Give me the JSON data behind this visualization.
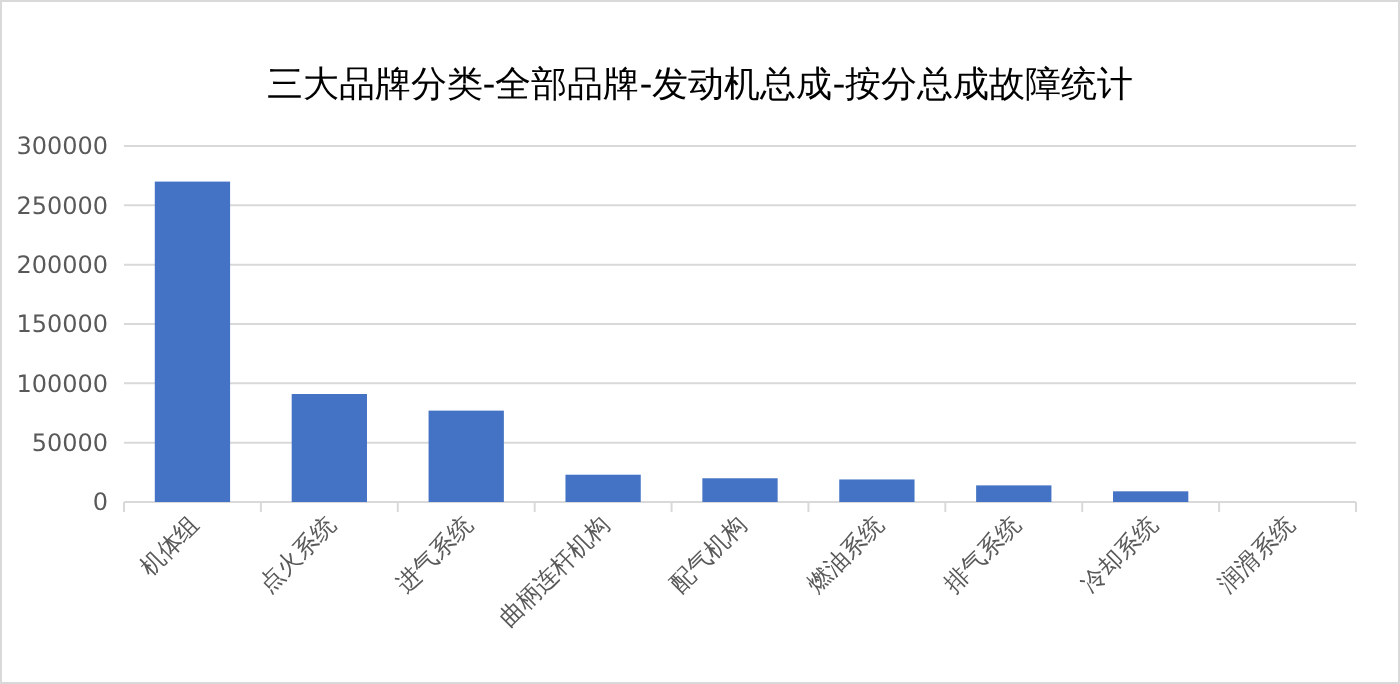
{
  "chart_data": {
    "type": "bar",
    "title": "三大品牌分类-全部品牌-发动机总成-按分总成故障统计",
    "categories": [
      "机体组",
      "点火系统",
      "进气系统",
      "曲柄连杆机构",
      "配气机构",
      "燃油系统",
      "排气系统",
      "冷却系统",
      "润滑系统"
    ],
    "values": [
      270000,
      91000,
      77000,
      23000,
      20000,
      19000,
      14000,
      9000,
      0
    ],
    "color": "#4472c4",
    "ylim": [
      0,
      300000
    ],
    "yticks": [
      0,
      50000,
      100000,
      150000,
      200000,
      250000,
      300000
    ],
    "grid": "y"
  }
}
